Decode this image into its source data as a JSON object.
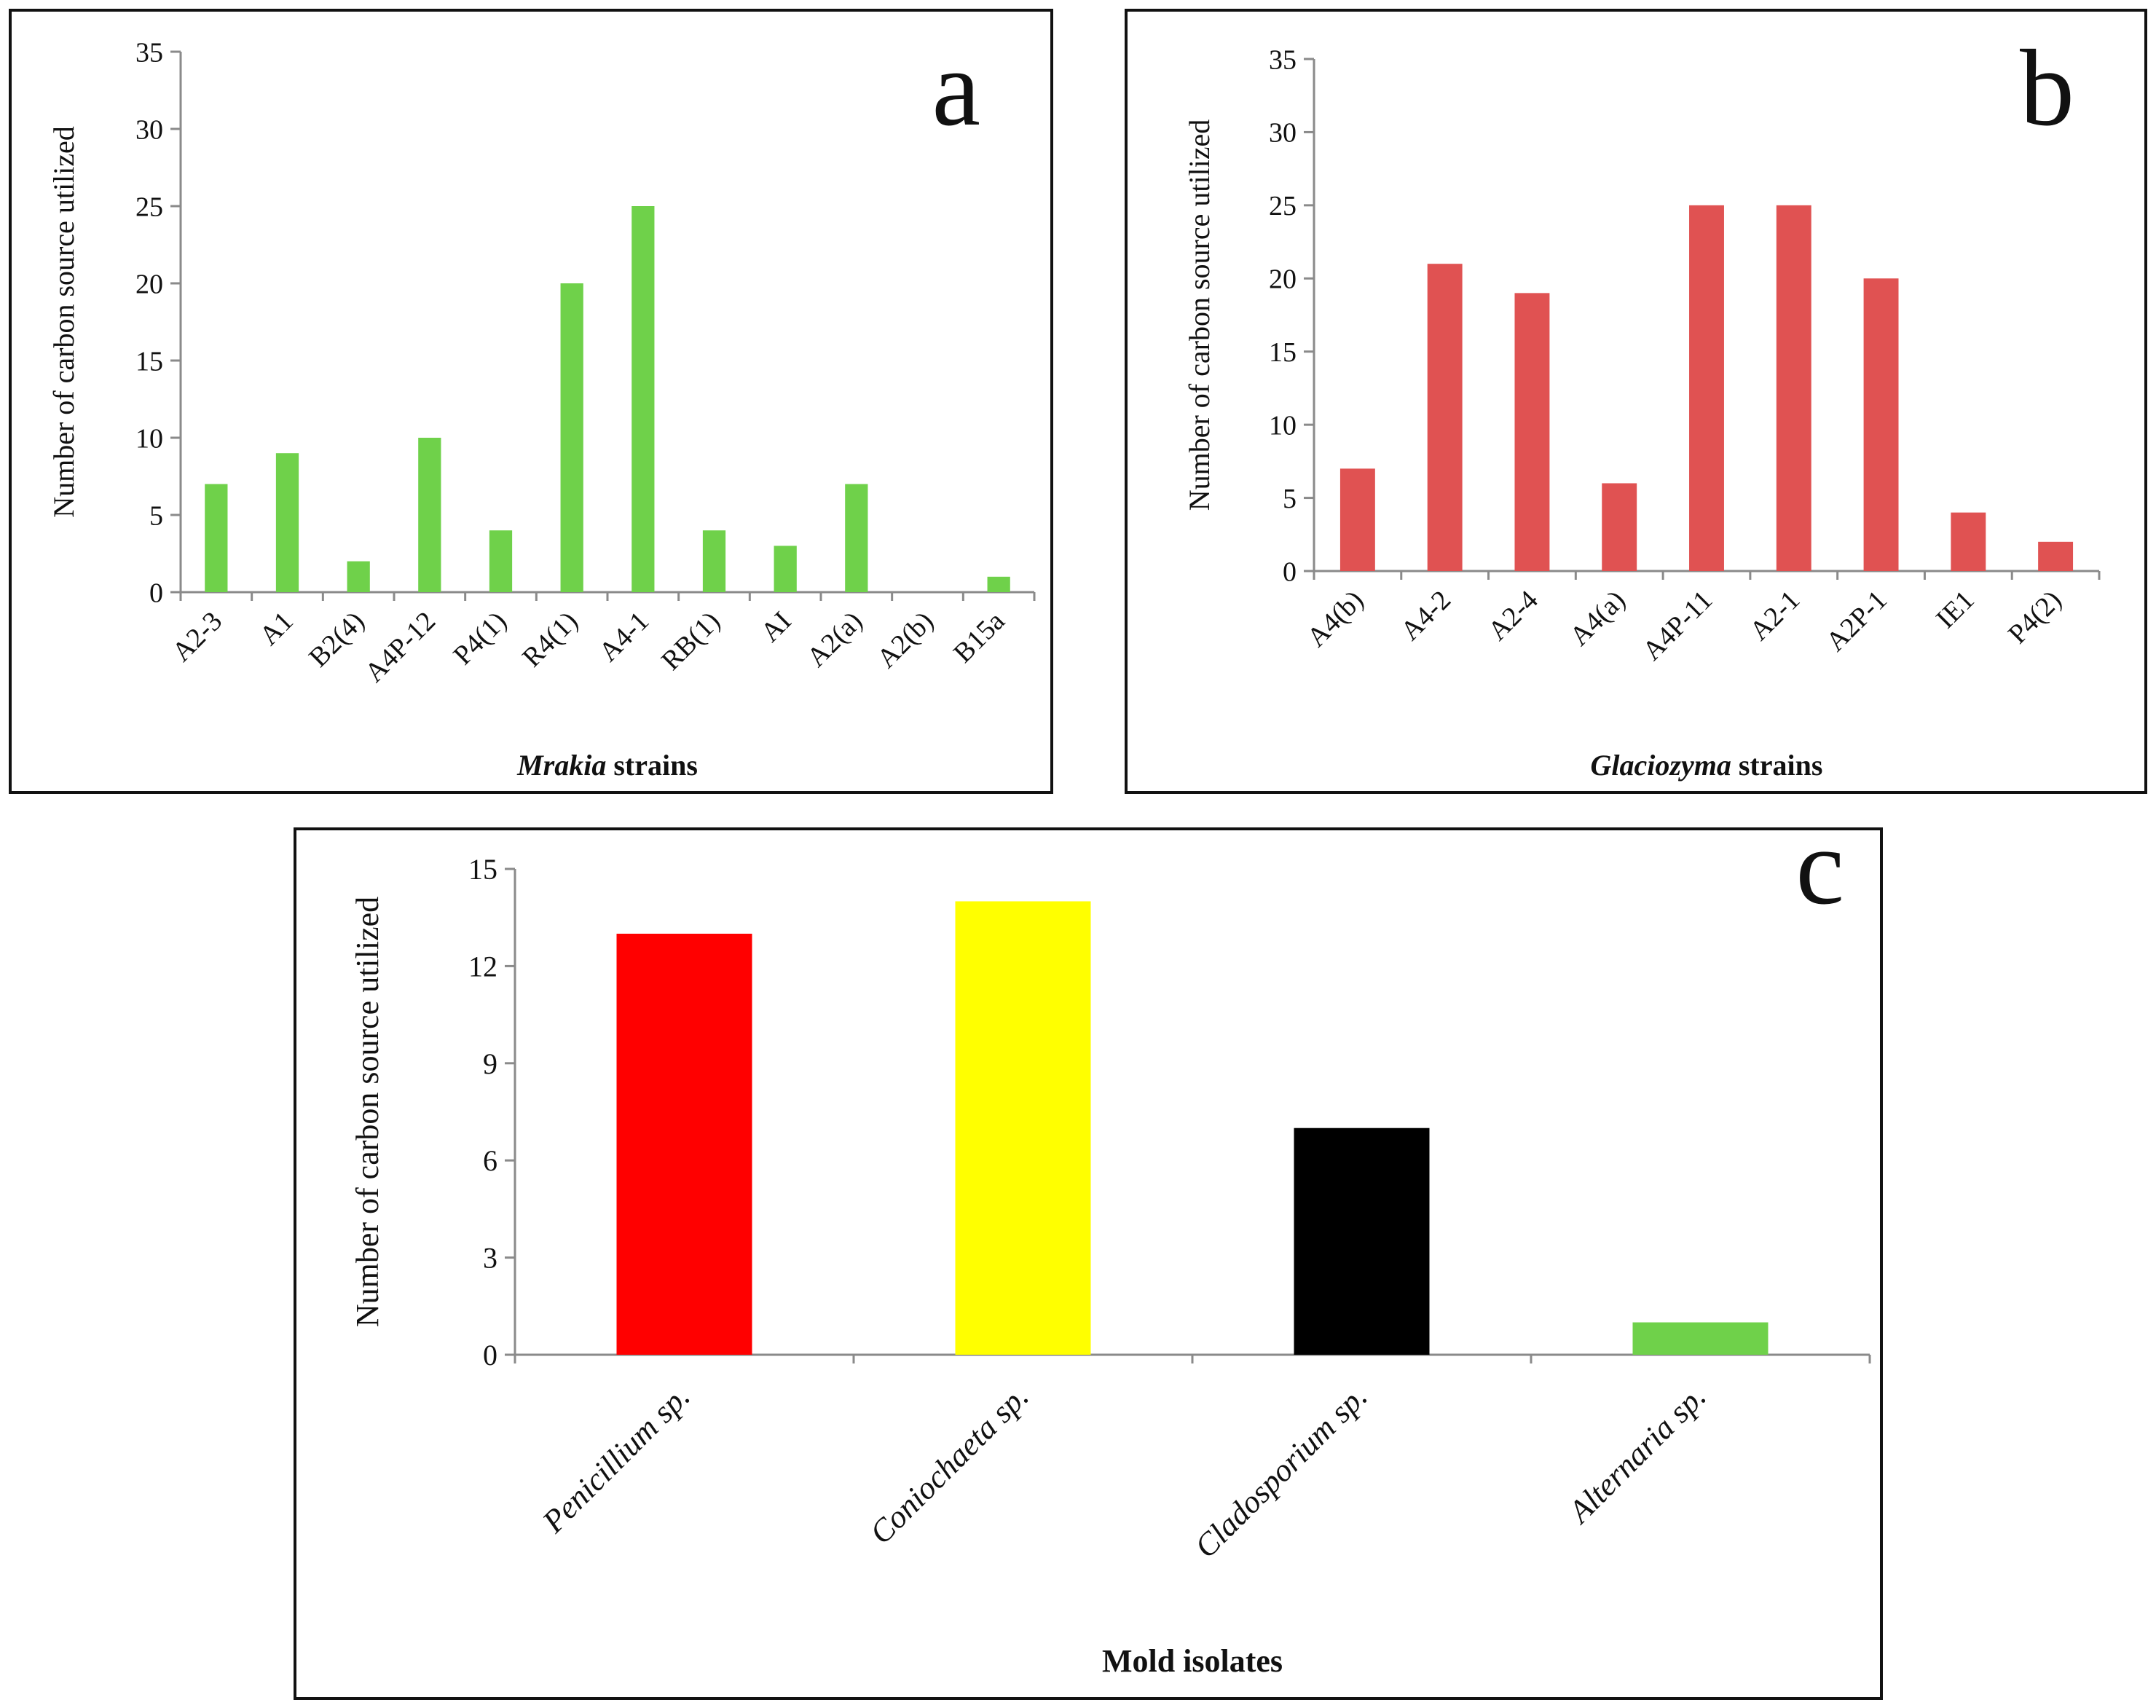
{
  "chart_data": [
    {
      "id": "a",
      "type": "bar",
      "panel_label": "a",
      "ylabel": "Number of carbon source utilized",
      "xlabel_italic": "Mrakia",
      "xlabel_rest": " strains",
      "ylim": [
        0,
        35
      ],
      "yticks": [
        0,
        5,
        10,
        15,
        20,
        25,
        30,
        35
      ],
      "categories": [
        "A2-3",
        "A1",
        "B2(4)",
        "A4P-12",
        "P4(1)",
        "R4(1)",
        "A4-1",
        "RB(1)",
        "AI",
        "A2(a)",
        "A2(b)",
        "B15a"
      ],
      "values": [
        7,
        9,
        2,
        10,
        4,
        20,
        25,
        4,
        3,
        7,
        0,
        1
      ],
      "colors": [
        "#6fd14a"
      ],
      "italic_categories": false
    },
    {
      "id": "b",
      "type": "bar",
      "panel_label": "b",
      "ylabel": "Number of carbon source utilized",
      "xlabel_italic": "Glaciozyma",
      "xlabel_rest": " strains",
      "ylim": [
        0,
        35
      ],
      "yticks": [
        0,
        5,
        10,
        15,
        20,
        25,
        30,
        35
      ],
      "categories": [
        "A4(b)",
        "A4-2",
        "A2-4",
        "A4(a)",
        "A4P-11",
        "A2-1",
        "A2P-1",
        "IE1",
        "P4(2)"
      ],
      "values": [
        7,
        21,
        19,
        6,
        25,
        25,
        20,
        4,
        2
      ],
      "colors": [
        "#e05252"
      ],
      "italic_categories": false
    },
    {
      "id": "c",
      "type": "bar",
      "panel_label": "c",
      "ylabel": "Number of carbon source utilized",
      "xlabel_italic": "",
      "xlabel_rest": "Mold isolates",
      "ylim": [
        0,
        15
      ],
      "yticks": [
        0,
        3,
        6,
        9,
        12,
        15
      ],
      "categories": [
        "Penicillium sp.",
        "Coniochaeta sp.",
        "Cladosporium sp.",
        "Alternaria sp."
      ],
      "values": [
        13,
        14,
        7,
        1
      ],
      "colors": [
        "#ff0000",
        "#ffff00",
        "#000000",
        "#6fd14a"
      ],
      "italic_categories": true
    }
  ]
}
